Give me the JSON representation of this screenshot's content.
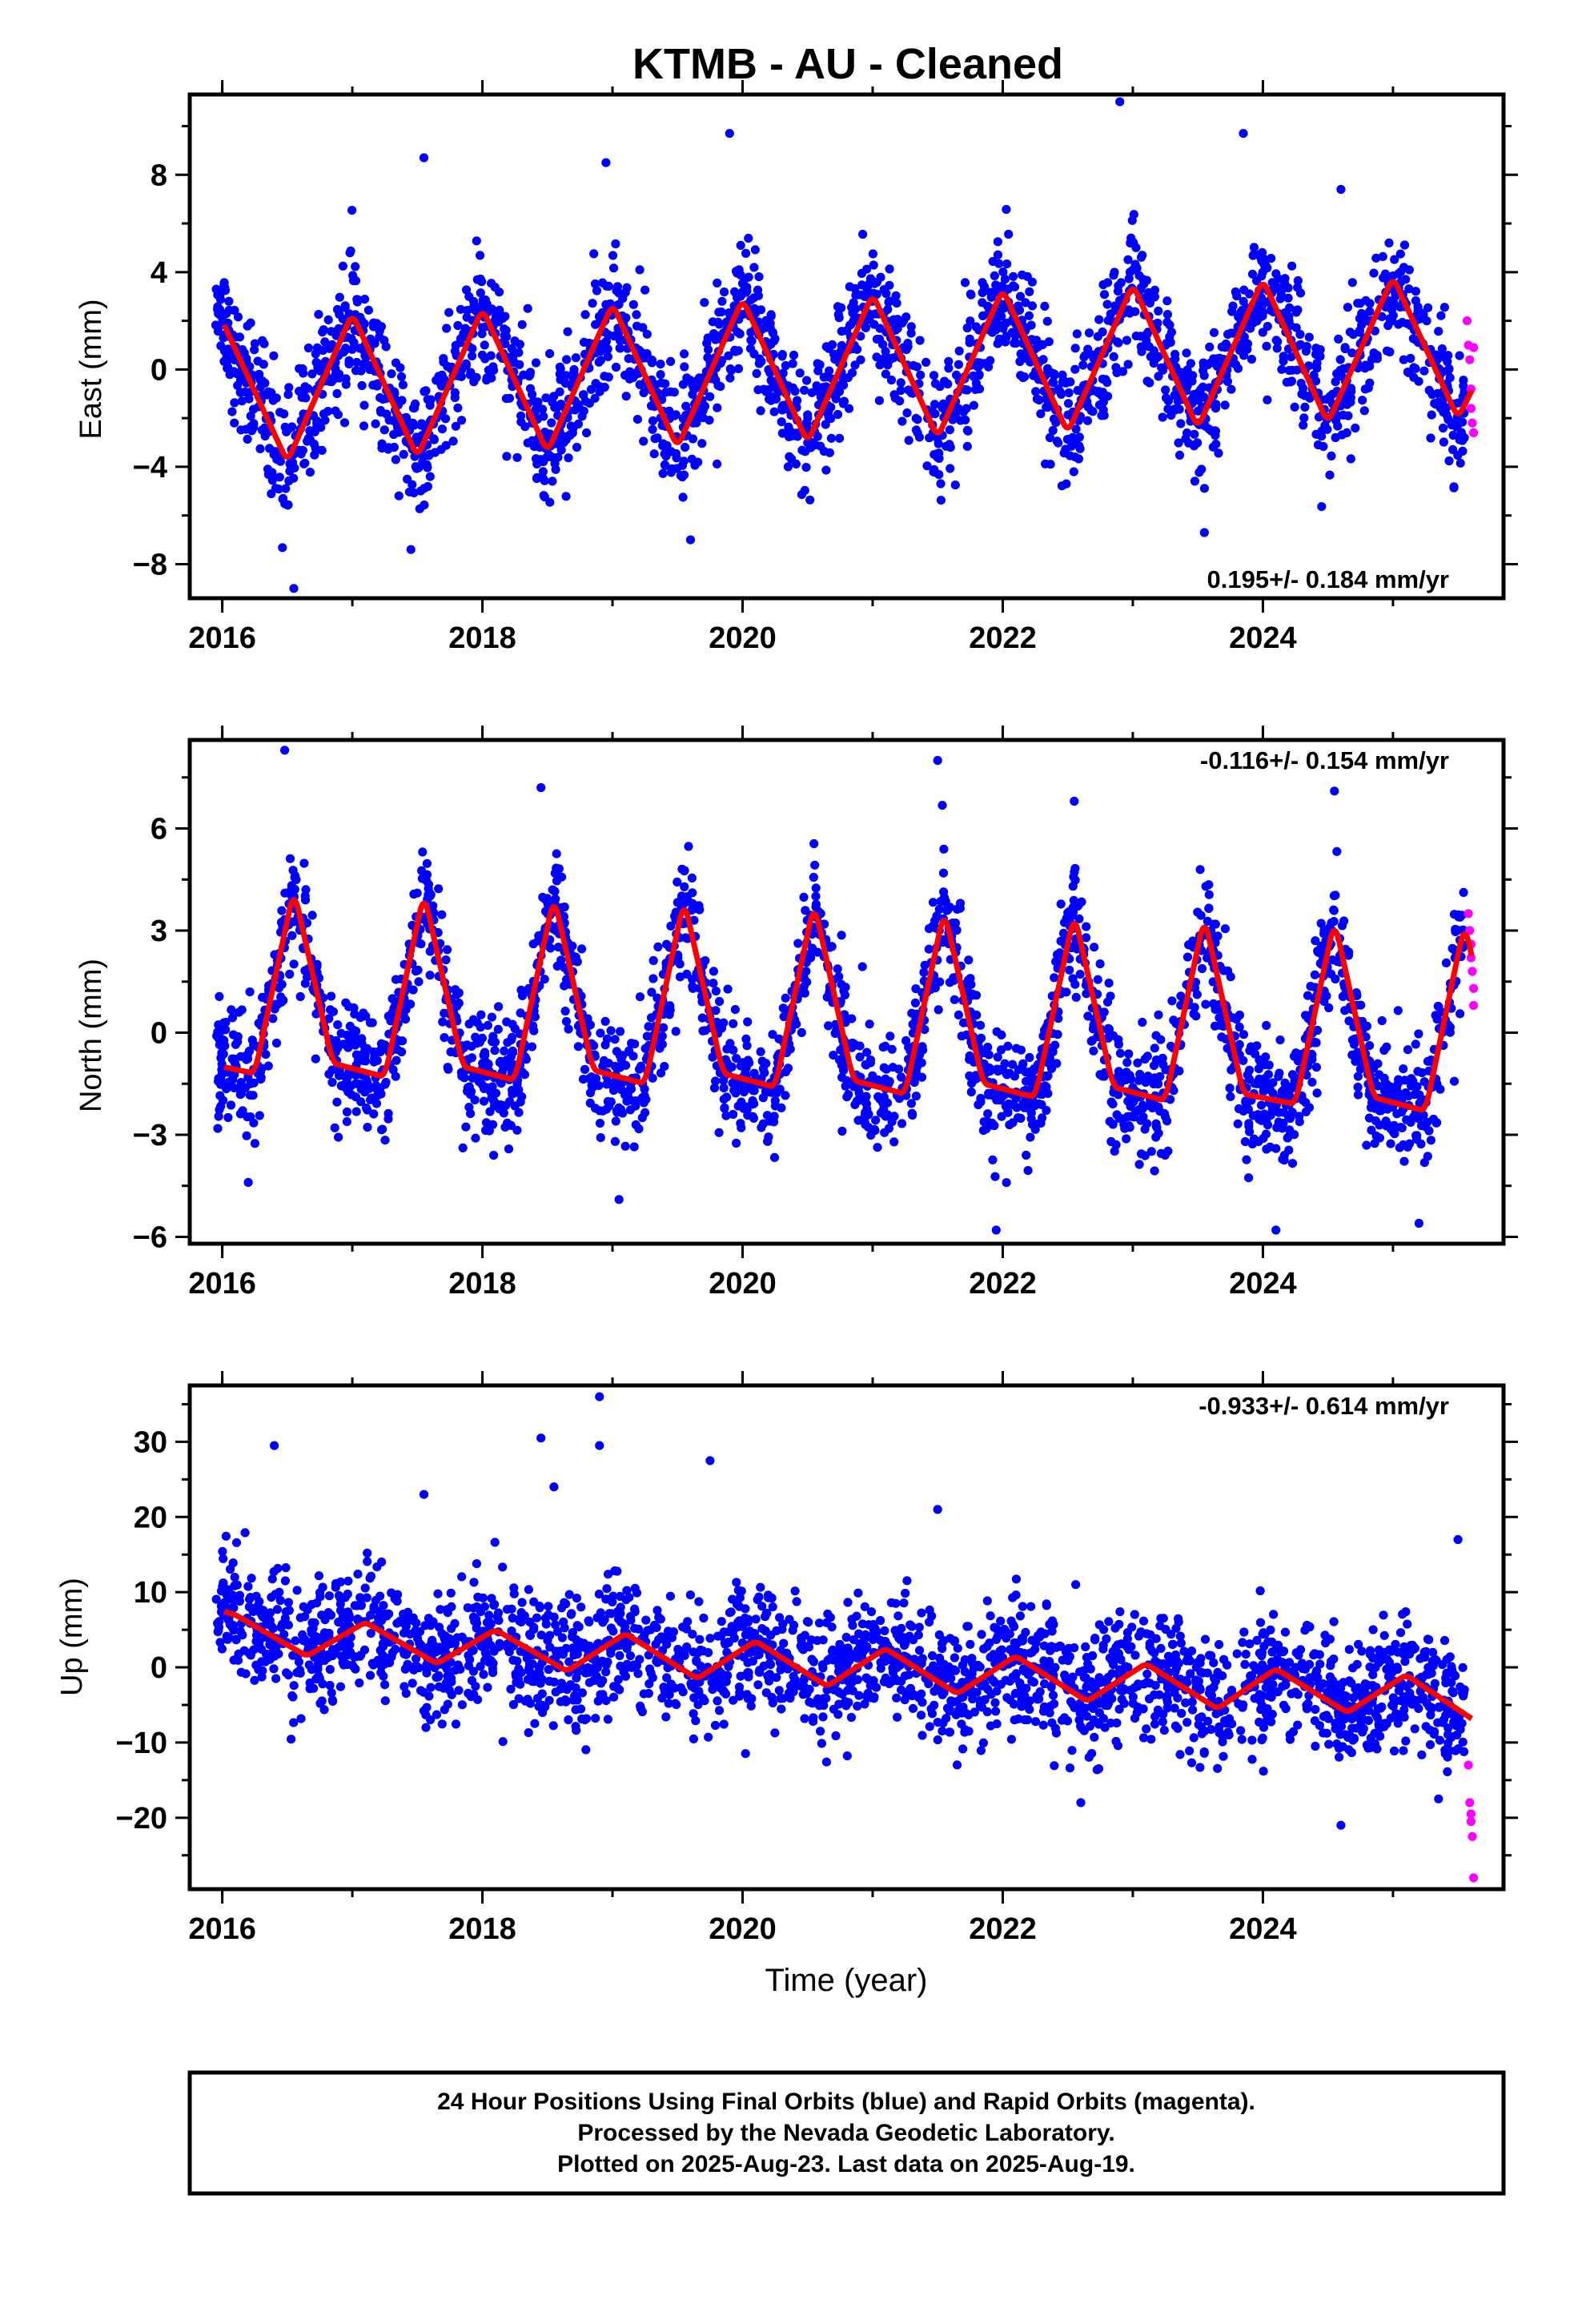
{
  "colors": {
    "final": "#0000ff",
    "rapid": "#ff00ff",
    "fit": "#ff0000",
    "frame": "#000000"
  },
  "footer": {
    "lines": [
      "24 Hour Positions Using Final Orbits (blue) and Rapid Orbits (magenta).",
      "Processed by the Nevada Geodetic Laboratory.",
      "Plotted on 2025-Aug-23. Last data on 2025-Aug-19."
    ]
  },
  "chart_data": [
    {
      "type": "scatter",
      "title": "KTMB  - AU - Cleaned",
      "xlabel": "",
      "ylabel": "East (mm)",
      "xlim": [
        2015.75,
        2025.85
      ],
      "ylim": [
        -9.4,
        11.3
      ],
      "xticks": [
        2016,
        2018,
        2020,
        2022,
        2024
      ],
      "yticks": [
        -8,
        -4,
        0,
        4,
        8
      ],
      "rate_text": "0.195+/- 0.184 mm/yr",
      "rate_position": "bottom-right",
      "fit": {
        "x": [
          2016.0,
          2016.5,
          2017.0,
          2017.5,
          2018.0,
          2018.5,
          2019.0,
          2019.5,
          2020.0,
          2020.5,
          2021.0,
          2021.5,
          2022.0,
          2022.5,
          2023.0,
          2023.5,
          2024.0,
          2024.5,
          2025.0,
          2025.5,
          2025.62
        ],
        "y": [
          2.0,
          -3.8,
          2.3,
          -3.6,
          2.5,
          -3.4,
          2.7,
          -3.2,
          2.9,
          -3.0,
          3.1,
          -2.8,
          3.3,
          -2.6,
          3.5,
          -2.4,
          3.7,
          -2.2,
          3.8,
          -2.0,
          -0.7
        ]
      },
      "series": [
        {
          "name": "Final Orbits",
          "color": "#0000ff",
          "x_range": [
            2015.95,
            2025.55
          ],
          "amplitude": 3.0,
          "noise": 1.3,
          "count": 2400,
          "outliers": [
            {
              "x": 2016.55,
              "y": -9.0
            },
            {
              "x": 2017.55,
              "y": 8.7
            },
            {
              "x": 2018.95,
              "y": 8.5
            },
            {
              "x": 2019.9,
              "y": 9.7
            },
            {
              "x": 2022.9,
              "y": 11.0
            },
            {
              "x": 2023.85,
              "y": 9.7
            },
            {
              "x": 2024.6,
              "y": 7.4
            },
            {
              "x": 2017.45,
              "y": -7.4
            },
            {
              "x": 2019.6,
              "y": -7.0
            },
            {
              "x": 2023.55,
              "y": -6.7
            }
          ]
        },
        {
          "name": "Rapid Orbits",
          "color": "#ff00ff",
          "points": [
            {
              "x": 2025.57,
              "y": 2.0
            },
            {
              "x": 2025.58,
              "y": 1.0
            },
            {
              "x": 2025.59,
              "y": 0.4
            },
            {
              "x": 2025.6,
              "y": -0.8
            },
            {
              "x": 2025.6,
              "y": -1.6
            },
            {
              "x": 2025.61,
              "y": -2.2
            },
            {
              "x": 2025.62,
              "y": -2.6
            },
            {
              "x": 2025.62,
              "y": 0.9
            }
          ]
        }
      ]
    },
    {
      "type": "scatter",
      "title": "",
      "xlabel": "",
      "ylabel": "North (mm)",
      "xlim": [
        2015.75,
        2025.85
      ],
      "ylim": [
        -6.2,
        8.6
      ],
      "xticks": [
        2016,
        2018,
        2020,
        2022,
        2024
      ],
      "yticks": [
        -6,
        -3,
        0,
        3,
        6
      ],
      "rate_text": "-0.116+/- 0.154 mm/yr",
      "rate_position": "top-right",
      "fit": {
        "x": [
          2016.0,
          2016.25,
          2016.55,
          2016.85,
          2017.25,
          2017.55,
          2017.85,
          2018.25,
          2018.55,
          2018.85,
          2019.25,
          2019.55,
          2019.85,
          2020.25,
          2020.55,
          2020.85,
          2021.25,
          2021.55,
          2021.85,
          2022.25,
          2022.55,
          2022.85,
          2023.25,
          2023.55,
          2023.85,
          2024.25,
          2024.55,
          2024.85,
          2025.25,
          2025.55,
          2025.62
        ],
        "y": [
          -1.0,
          -1.2,
          4.2,
          -0.9,
          -1.3,
          4.1,
          -1.0,
          -1.4,
          4.0,
          -1.1,
          -1.5,
          3.9,
          -1.2,
          -1.6,
          3.8,
          -1.4,
          -1.8,
          3.6,
          -1.5,
          -1.9,
          3.5,
          -1.6,
          -2.0,
          3.4,
          -1.8,
          -2.1,
          3.3,
          -1.9,
          -2.3,
          3.2,
          2.0
        ]
      },
      "series": [
        {
          "name": "Final Orbits",
          "color": "#0000ff",
          "x_range": [
            2015.95,
            2025.55
          ],
          "amplitude": 2.8,
          "noise": 0.9,
          "count": 2400,
          "outliers": [
            {
              "x": 2016.48,
              "y": 8.3
            },
            {
              "x": 2021.5,
              "y": 8.0
            },
            {
              "x": 2018.45,
              "y": 7.2
            },
            {
              "x": 2022.55,
              "y": 6.8
            },
            {
              "x": 2024.55,
              "y": 7.1
            },
            {
              "x": 2021.95,
              "y": -5.8
            },
            {
              "x": 2024.1,
              "y": -5.8
            },
            {
              "x": 2019.05,
              "y": -4.9
            },
            {
              "x": 2025.2,
              "y": -5.6
            },
            {
              "x": 2016.2,
              "y": -4.4
            }
          ]
        },
        {
          "name": "Rapid Orbits",
          "color": "#ff00ff",
          "points": [
            {
              "x": 2025.58,
              "y": 3.5
            },
            {
              "x": 2025.59,
              "y": 3.0
            },
            {
              "x": 2025.6,
              "y": 2.6
            },
            {
              "x": 2025.6,
              "y": 2.2
            },
            {
              "x": 2025.61,
              "y": 1.8
            },
            {
              "x": 2025.62,
              "y": 1.3
            },
            {
              "x": 2025.62,
              "y": 0.8
            }
          ]
        }
      ]
    },
    {
      "type": "scatter",
      "title": "",
      "xlabel": "Time (year)",
      "ylabel": "Up (mm)",
      "xlim": [
        2015.75,
        2025.85
      ],
      "ylim": [
        -29.5,
        37.5
      ],
      "xticks": [
        2016,
        2018,
        2020,
        2022,
        2024
      ],
      "yticks": [
        -20,
        -10,
        0,
        10,
        20,
        30
      ],
      "rate_text": "-0.933+/- 0.614 mm/yr",
      "rate_position": "top-right",
      "fit": {
        "x": [
          2016.0,
          2016.1,
          2016.65,
          2017.1,
          2017.65,
          2018.1,
          2018.65,
          2019.1,
          2019.65,
          2020.1,
          2020.65,
          2021.1,
          2021.65,
          2022.1,
          2022.65,
          2023.1,
          2023.65,
          2024.1,
          2024.65,
          2025.1,
          2025.62
        ],
        "y": [
          7.5,
          7.0,
          1.5,
          6.0,
          0.5,
          5.0,
          -0.5,
          4.5,
          -1.5,
          3.5,
          -2.5,
          2.5,
          -3.5,
          1.5,
          -4.5,
          0.5,
          -5.5,
          -0.2,
          -6.0,
          -1.0,
          -7.0
        ]
      },
      "series": [
        {
          "name": "Final Orbits",
          "color": "#0000ff",
          "x_range": [
            2015.95,
            2025.55
          ],
          "amplitude": 3.0,
          "noise": 4.2,
          "count": 2400,
          "outliers": [
            {
              "x": 2016.4,
              "y": 29.5
            },
            {
              "x": 2018.45,
              "y": 30.5
            },
            {
              "x": 2018.9,
              "y": 36.0
            },
            {
              "x": 2018.9,
              "y": 29.5
            },
            {
              "x": 2019.75,
              "y": 27.5
            },
            {
              "x": 2017.55,
              "y": 23.0
            },
            {
              "x": 2018.55,
              "y": 24.0
            },
            {
              "x": 2021.5,
              "y": 21.0
            },
            {
              "x": 2025.5,
              "y": 17.0
            },
            {
              "x": 2024.6,
              "y": -21.0
            },
            {
              "x": 2025.35,
              "y": -17.5
            },
            {
              "x": 2022.6,
              "y": -18.0
            }
          ]
        },
        {
          "name": "Rapid Orbits",
          "color": "#ff00ff",
          "points": [
            {
              "x": 2025.58,
              "y": -13.0
            },
            {
              "x": 2025.59,
              "y": -18.0
            },
            {
              "x": 2025.6,
              "y": -19.5
            },
            {
              "x": 2025.6,
              "y": -20.5
            },
            {
              "x": 2025.61,
              "y": -22.5
            },
            {
              "x": 2025.62,
              "y": -28.0
            }
          ]
        }
      ]
    }
  ]
}
